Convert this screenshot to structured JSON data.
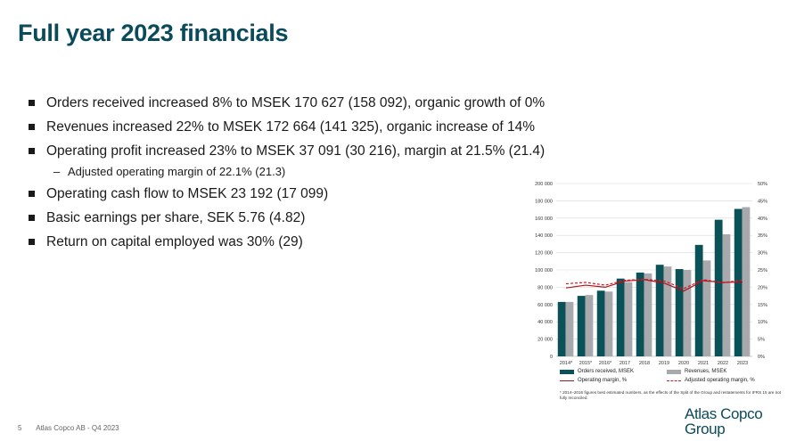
{
  "title": "Full year 2023 financials",
  "bullets": [
    "Orders received increased 8% to MSEK 170 627 (158 092), organic growth of 0%",
    "Revenues increased 22% to MSEK 172 664 (141 325), organic increase of 14%",
    "Operating profit increased 23% to MSEK 37 091 (30 216), margin at 21.5% (21.4)"
  ],
  "sub_bullet": "Adjusted operating margin of 22.1% (21.3)",
  "bullets2": [
    "Operating cash flow to MSEK 23 192 (17 099)",
    "Basic earnings per share, SEK 5.76 (4.82)",
    "Return on capital employed was 30% (29)"
  ],
  "footer": {
    "page": "5",
    "text": "Atlas Copco AB - Q4 2023"
  },
  "logo": {
    "line1": "Atlas Copco",
    "line2": "Group"
  },
  "legend": {
    "orders": "Orders received, MSEK",
    "revenues": "Revenues, MSEK",
    "op_margin": "Operating margin, %",
    "adj_margin": "Adjusted operating margin, %"
  },
  "footnote": "* 2014–2016 figures best estimated numbers, as the effects of the Split of the Group and restatements for IFRS 15 are not fully reconciled.",
  "colors": {
    "title": "#0b4a5a",
    "orders": "#0b5158",
    "revenues": "#a7a9ac",
    "op_margin": "#b0121b",
    "adj_margin": "#d11a23"
  },
  "chart_data": {
    "type": "bar",
    "categories": [
      "2014*",
      "2015*",
      "2016*",
      "2017",
      "2018",
      "2019",
      "2020",
      "2021",
      "2022",
      "2023"
    ],
    "y_ticks": [
      "0",
      "20 000",
      "40 000",
      "60 000",
      "80 000",
      "100 000",
      "120 000",
      "140 000",
      "160 000",
      "180 000",
      "200 000"
    ],
    "y2_ticks": [
      "0%",
      "5%",
      "10%",
      "15%",
      "20%",
      "25%",
      "30%",
      "35%",
      "40%",
      "45%",
      "50%"
    ],
    "ylim": [
      0,
      200000
    ],
    "y2lim": [
      0,
      50
    ],
    "grid": true,
    "series": [
      {
        "name": "Orders received, MSEK",
        "values": [
          63000,
          70000,
          76000,
          90000,
          97000,
          106000,
          101000,
          129000,
          158092,
          170627
        ]
      },
      {
        "name": "Revenues, MSEK",
        "values": [
          63000,
          71000,
          75000,
          86000,
          96000,
          104000,
          100000,
          111000,
          141325,
          172664
        ]
      },
      {
        "name": "Operating margin, %",
        "values": [
          19.8,
          20.6,
          20.0,
          21.8,
          22.2,
          21.2,
          18.9,
          21.9,
          21.4,
          21.5
        ]
      },
      {
        "name": "Adjusted operating margin, %",
        "values": [
          21.0,
          21.4,
          20.6,
          22.0,
          22.3,
          21.8,
          19.6,
          22.2,
          21.3,
          22.1
        ]
      }
    ]
  }
}
